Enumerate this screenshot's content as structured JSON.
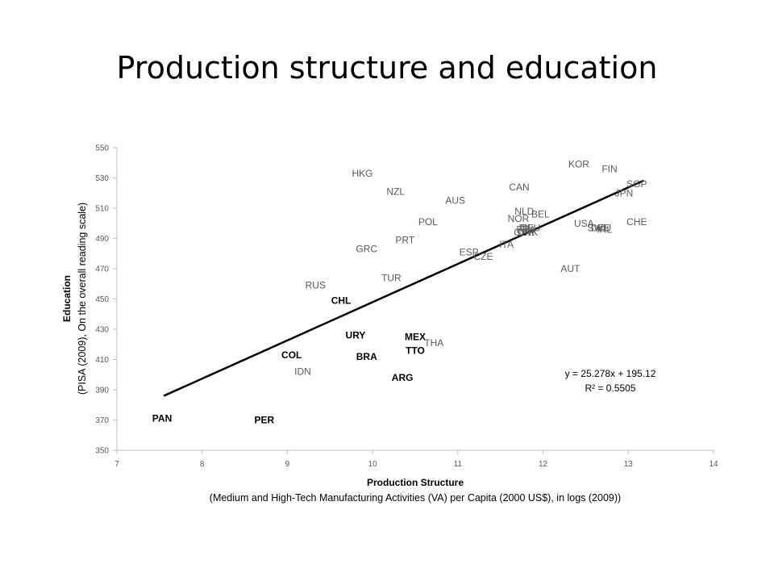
{
  "slide": {
    "title": "Production structure and education"
  },
  "chart_data": {
    "type": "scatter",
    "xlabel": "Production Structure",
    "xlabel_sub": "(Medium and High-Tech Manufacturing Activities (VA) per Capita (2000 US$), in logs (2009))",
    "ylabel": "Education",
    "ylabel_sub": "(PISA (2009), On the overall reading scale)",
    "xlim": [
      7,
      14
    ],
    "ylim": [
      350,
      550
    ],
    "xticks": [
      7,
      8,
      9,
      10,
      11,
      12,
      13,
      14
    ],
    "yticks": [
      350,
      370,
      390,
      410,
      430,
      450,
      470,
      490,
      510,
      530,
      550
    ],
    "points": [
      {
        "label": "KOR",
        "x": 12.42,
        "y": 539,
        "bold": false
      },
      {
        "label": "FIN",
        "x": 12.78,
        "y": 536,
        "bold": false
      },
      {
        "label": "SGP",
        "x": 13.1,
        "y": 526,
        "bold": false
      },
      {
        "label": "JPN",
        "x": 12.95,
        "y": 520,
        "bold": false
      },
      {
        "label": "HKG",
        "x": 9.88,
        "y": 533,
        "bold": false
      },
      {
        "label": "NZL",
        "x": 10.27,
        "y": 521,
        "bold": false
      },
      {
        "label": "CAN",
        "x": 11.72,
        "y": 524,
        "bold": false
      },
      {
        "label": "AUS",
        "x": 10.97,
        "y": 515,
        "bold": false
      },
      {
        "label": "NLD",
        "x": 11.78,
        "y": 508,
        "bold": false
      },
      {
        "label": "BEL",
        "x": 11.97,
        "y": 506,
        "bold": false
      },
      {
        "label": "NOR",
        "x": 11.71,
        "y": 503,
        "bold": false
      },
      {
        "label": "POL",
        "x": 10.65,
        "y": 501,
        "bold": false
      },
      {
        "label": "USA",
        "x": 12.48,
        "y": 500,
        "bold": false
      },
      {
        "label": "CHE",
        "x": 13.1,
        "y": 501,
        "bold": false
      },
      {
        "label": "ISL",
        "x": 11.8,
        "y": 497,
        "bold": false
      },
      {
        "label": "DEU",
        "x": 11.85,
        "y": 497,
        "bold": false
      },
      {
        "label": "FRA",
        "x": 11.8,
        "y": 496,
        "bold": false
      },
      {
        "label": "GBR",
        "x": 11.78,
        "y": 494,
        "bold": false
      },
      {
        "label": "DNK",
        "x": 11.82,
        "y": 494,
        "bold": false
      },
      {
        "label": "SWE",
        "x": 12.65,
        "y": 497,
        "bold": false
      },
      {
        "label": "DEU",
        "x": 12.68,
        "y": 497,
        "bold": false
      },
      {
        "label": "IRL",
        "x": 12.72,
        "y": 496,
        "bold": false
      },
      {
        "label": "PRT",
        "x": 10.38,
        "y": 489,
        "bold": false
      },
      {
        "label": "ITA",
        "x": 11.57,
        "y": 486,
        "bold": false
      },
      {
        "label": "GRC",
        "x": 9.93,
        "y": 483,
        "bold": false
      },
      {
        "label": "ESP",
        "x": 11.13,
        "y": 481,
        "bold": false
      },
      {
        "label": "CZE",
        "x": 11.3,
        "y": 478,
        "bold": false
      },
      {
        "label": "AUT",
        "x": 12.32,
        "y": 470,
        "bold": false
      },
      {
        "label": "TUR",
        "x": 10.22,
        "y": 464,
        "bold": false
      },
      {
        "label": "RUS",
        "x": 9.33,
        "y": 459,
        "bold": false
      },
      {
        "label": "CHL",
        "x": 9.63,
        "y": 449,
        "bold": true
      },
      {
        "label": "URY",
        "x": 9.8,
        "y": 426,
        "bold": true
      },
      {
        "label": "MEX",
        "x": 10.5,
        "y": 425,
        "bold": true
      },
      {
        "label": "THA",
        "x": 10.72,
        "y": 421,
        "bold": false
      },
      {
        "label": "TTO",
        "x": 10.5,
        "y": 416,
        "bold": true
      },
      {
        "label": "COL",
        "x": 9.05,
        "y": 413,
        "bold": true
      },
      {
        "label": "BRA",
        "x": 9.93,
        "y": 412,
        "bold": true
      },
      {
        "label": "IDN",
        "x": 9.18,
        "y": 402,
        "bold": false
      },
      {
        "label": "ARG",
        "x": 10.35,
        "y": 398,
        "bold": true
      },
      {
        "label": "PAN",
        "x": 7.53,
        "y": 371,
        "bold": true
      },
      {
        "label": "PER",
        "x": 8.73,
        "y": 370,
        "bold": true
      }
    ],
    "trendline": {
      "slope": 25.278,
      "intercept": 195.12,
      "x_range": [
        7.55,
        13.18
      ],
      "equation": "y = 25.278x + 195.12",
      "r2": "R² = 0.5505"
    },
    "grid": false,
    "legend": "none",
    "colors": {
      "axis": "#bfbfbf",
      "text": "#595959",
      "line": "#000000"
    }
  }
}
